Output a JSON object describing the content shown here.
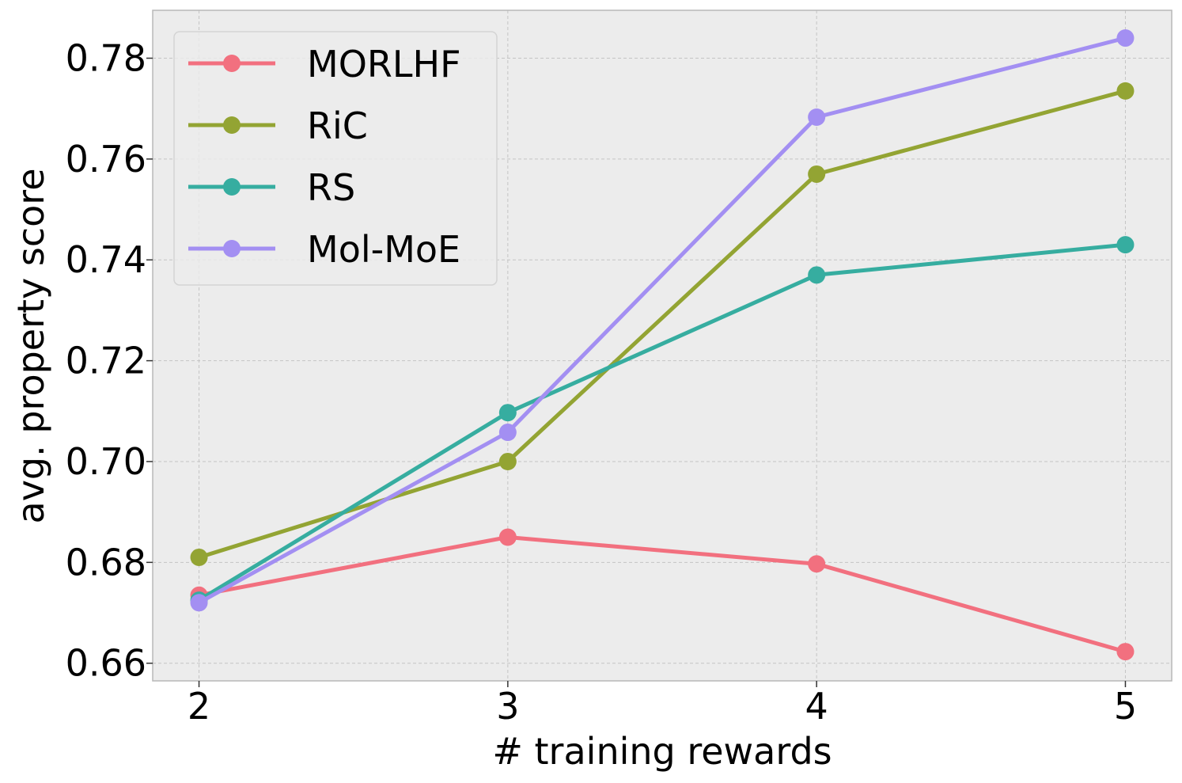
{
  "chart_data": {
    "type": "line",
    "title": "",
    "xlabel": "# training rewards",
    "ylabel": "avg. property score",
    "x": [
      2,
      3,
      4,
      5
    ],
    "x_ticks": [
      "2",
      "3",
      "4",
      "5"
    ],
    "y_ticks": [
      "0.66",
      "0.68",
      "0.70",
      "0.72",
      "0.74",
      "0.76",
      "0.78"
    ],
    "xlim": [
      1.85,
      5.15
    ],
    "ylim": [
      0.6565,
      0.7895
    ],
    "grid": true,
    "legend_position": "top-left",
    "background_color": "#ececec",
    "series": [
      {
        "name": "MORLHF",
        "color": "#f2707f",
        "values": [
          0.6735,
          0.685,
          0.6797,
          0.6623
        ]
      },
      {
        "name": "RiC",
        "color": "#93a433",
        "values": [
          0.681,
          0.7,
          0.757,
          0.7735
        ]
      },
      {
        "name": "RS",
        "color": "#36ada0",
        "values": [
          0.6725,
          0.7097,
          0.737,
          0.743
        ]
      },
      {
        "name": "Mol-MoE",
        "color": "#a38ff2",
        "values": [
          0.672,
          0.7058,
          0.7683,
          0.784
        ]
      }
    ]
  }
}
